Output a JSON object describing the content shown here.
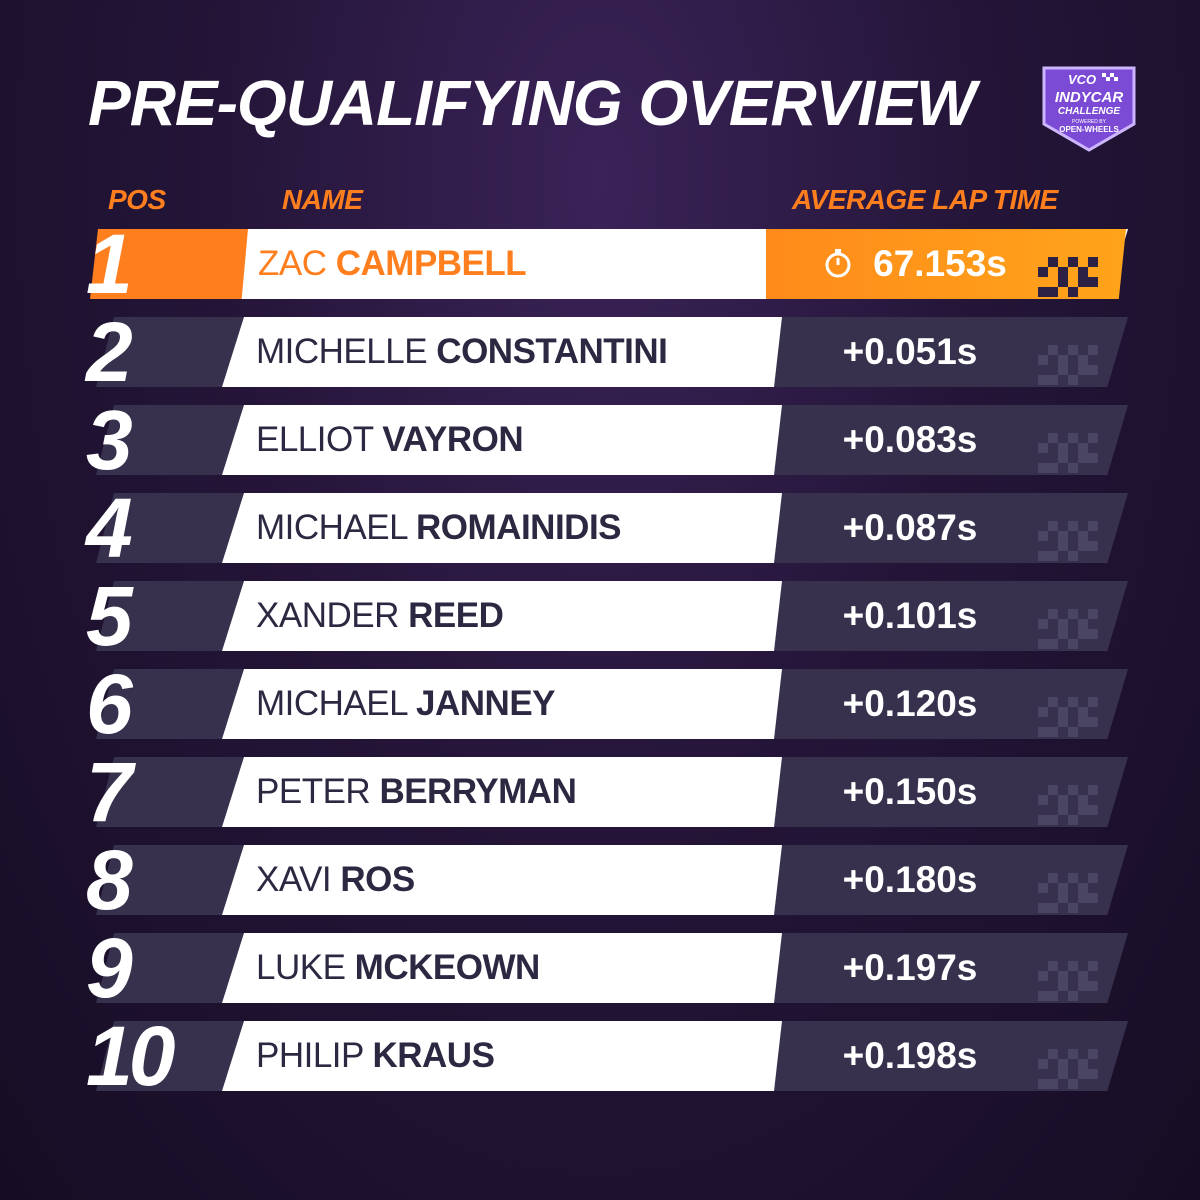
{
  "title": "PRE-QUALIFYING OVERVIEW",
  "logo": {
    "top": "VCO",
    "middle": "INDYCAR",
    "lower": "CHALLENGE",
    "powered": "POWERED BY",
    "bottom": "OPEN-WHEELS"
  },
  "headers": {
    "pos": "POS",
    "name": "NAME",
    "time": "AVERAGE LAP TIME"
  },
  "colors": {
    "accent": "#ff7f1f",
    "background": "#241538",
    "row_dark": "#37314d",
    "name_text": "#2c2842"
  },
  "leader_icon": "stopwatch-icon",
  "rows": [
    {
      "pos": "1",
      "first": "ZAC",
      "last": "CAMPBELL",
      "time": "67.153s"
    },
    {
      "pos": "2",
      "first": "MICHELLE",
      "last": "CONSTANTINI",
      "time": "+0.051s"
    },
    {
      "pos": "3",
      "first": "ELLIOT",
      "last": "VAYRON",
      "time": "+0.083s"
    },
    {
      "pos": "4",
      "first": "MICHAEL",
      "last": "ROMAINIDIS",
      "time": "+0.087s"
    },
    {
      "pos": "5",
      "first": "XANDER",
      "last": "REED",
      "time": "+0.101s"
    },
    {
      "pos": "6",
      "first": "MICHAEL",
      "last": "JANNEY",
      "time": "+0.120s"
    },
    {
      "pos": "7",
      "first": "PETER",
      "last": "BERRYMAN",
      "time": "+0.150s"
    },
    {
      "pos": "8",
      "first": "XAVI",
      "last": "ROS",
      "time": "+0.180s"
    },
    {
      "pos": "9",
      "first": "LUKE",
      "last": "MCKEOWN",
      "time": "+0.197s"
    },
    {
      "pos": "10",
      "first": "PHILIP",
      "last": "KRAUS",
      "time": "+0.198s"
    }
  ]
}
